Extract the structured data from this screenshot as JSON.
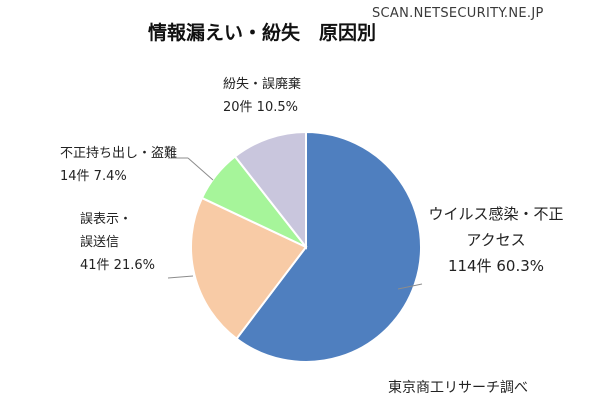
{
  "watermark": "SCAN.NETSECURITY.NE.JP",
  "chart_data": {
    "type": "pie",
    "title": "情報漏えい・紛失　原因別",
    "source_note": "東京商工リサーチ調べ",
    "slices": [
      {
        "name_lines": [
          "ウイルス感染・不正",
          "アクセス"
        ],
        "count_text": "114件 60.3%",
        "value": 114,
        "percent": 60.3,
        "color": "#4f7fbf"
      },
      {
        "name_lines": [
          "誤表示・",
          "誤送信"
        ],
        "count_text": "41件 21.6%",
        "value": 41,
        "percent": 21.6,
        "color": "#f8cba6"
      },
      {
        "name_lines": [
          "不正持ち出し・盗難"
        ],
        "count_text": "14件 7.4%",
        "value": 14,
        "percent": 7.4,
        "color": "#a6f59a"
      },
      {
        "name_lines": [
          "紛失・誤廃棄"
        ],
        "count_text": "20件 10.5%",
        "value": 20,
        "percent": 10.5,
        "color": "#c9c6dd"
      }
    ]
  }
}
